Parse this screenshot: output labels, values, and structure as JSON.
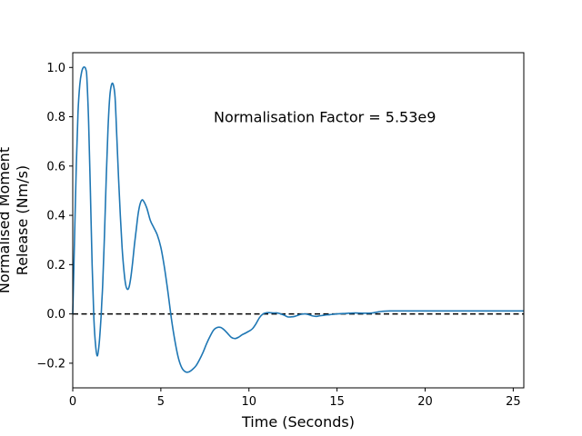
{
  "chart_data": {
    "type": "line",
    "title": "",
    "xlabel": "Time (Seconds)",
    "ylabel_lines": [
      "Normalised Moment",
      "Release (Nm/s)"
    ],
    "xlim": [
      0,
      25.6
    ],
    "ylim": [
      -0.3,
      1.06
    ],
    "xticks": [
      0,
      5,
      10,
      15,
      20,
      25
    ],
    "yticks": [
      -0.2,
      0.0,
      0.2,
      0.4,
      0.6,
      0.8,
      1.0
    ],
    "xtick_labels": [
      "0",
      "5",
      "10",
      "15",
      "20",
      "25"
    ],
    "ytick_labels": [
      "−0.2",
      "0.0",
      "0.2",
      "0.4",
      "0.6",
      "0.8",
      "1.0"
    ],
    "grid": false,
    "annotation": {
      "text": "Normalisation Factor = 5.53e9",
      "x": 8.0,
      "y": 0.8
    },
    "reference_line": {
      "y": 0.0,
      "style": "dashed",
      "color": "#000000"
    },
    "series": [
      {
        "color": "#1f77b4",
        "x": [
          0,
          0.1,
          0.2,
          0.3,
          0.4,
          0.5,
          0.6,
          0.7,
          0.75,
          0.8,
          0.9,
          1.0,
          1.1,
          1.2,
          1.3,
          1.4,
          1.5,
          1.6,
          1.65,
          1.7,
          1.8,
          1.9,
          2.0,
          2.1,
          2.2,
          2.3,
          2.4,
          2.5,
          2.6,
          2.7,
          2.8,
          2.9,
          3.0,
          3.1,
          3.2,
          3.3,
          3.4,
          3.5,
          3.6,
          3.7,
          3.8,
          3.9,
          4.0,
          4.2,
          4.4,
          4.6,
          4.8,
          5.0,
          5.2,
          5.4,
          5.6,
          5.8,
          6.0,
          6.2,
          6.4,
          6.6,
          6.8,
          7.0,
          7.2,
          7.4,
          7.6,
          7.8,
          8.0,
          8.2,
          8.4,
          8.6,
          8.8,
          9.0,
          9.2,
          9.4,
          9.6,
          9.8,
          10.0,
          10.2,
          10.4,
          10.6,
          10.8,
          11.0,
          11.2,
          11.4,
          11.6,
          11.8,
          12.0,
          12.2,
          12.4,
          12.6,
          12.8,
          13.0,
          13.2,
          13.4,
          13.6,
          13.8,
          14.0,
          14.3,
          14.6,
          15.0,
          15.5,
          16.0,
          16.5,
          17.0,
          17.5,
          18.0,
          18.5,
          19.0,
          19.5,
          20.0,
          20.5,
          21.0,
          21.5,
          22.0,
          22.5,
          23.0,
          23.5,
          24.0,
          24.5,
          25.0,
          25.6
        ],
        "y": [
          0.0,
          0.3,
          0.6,
          0.82,
          0.93,
          0.98,
          1.0,
          1.0,
          0.99,
          0.96,
          0.78,
          0.5,
          0.2,
          -0.02,
          -0.13,
          -0.17,
          -0.12,
          -0.02,
          0.05,
          0.12,
          0.32,
          0.55,
          0.75,
          0.88,
          0.93,
          0.93,
          0.88,
          0.72,
          0.55,
          0.4,
          0.27,
          0.18,
          0.12,
          0.1,
          0.11,
          0.15,
          0.21,
          0.28,
          0.34,
          0.4,
          0.44,
          0.46,
          0.46,
          0.43,
          0.38,
          0.35,
          0.32,
          0.27,
          0.19,
          0.09,
          -0.02,
          -0.11,
          -0.18,
          -0.22,
          -0.235,
          -0.235,
          -0.225,
          -0.21,
          -0.185,
          -0.155,
          -0.12,
          -0.09,
          -0.065,
          -0.055,
          -0.055,
          -0.065,
          -0.08,
          -0.095,
          -0.1,
          -0.095,
          -0.085,
          -0.078,
          -0.07,
          -0.06,
          -0.04,
          -0.015,
          0.0,
          0.005,
          0.005,
          0.004,
          0.004,
          0.0,
          -0.005,
          -0.012,
          -0.012,
          -0.01,
          -0.005,
          -0.001,
          0.0,
          -0.003,
          -0.008,
          -0.01,
          -0.008,
          -0.005,
          -0.003,
          0.0,
          0.002,
          0.004,
          0.003,
          0.004,
          0.01,
          0.012,
          0.012,
          0.012,
          0.012,
          0.012,
          0.012,
          0.012,
          0.012,
          0.012,
          0.012,
          0.012,
          0.012,
          0.012,
          0.012,
          0.012,
          0.012
        ]
      }
    ]
  }
}
